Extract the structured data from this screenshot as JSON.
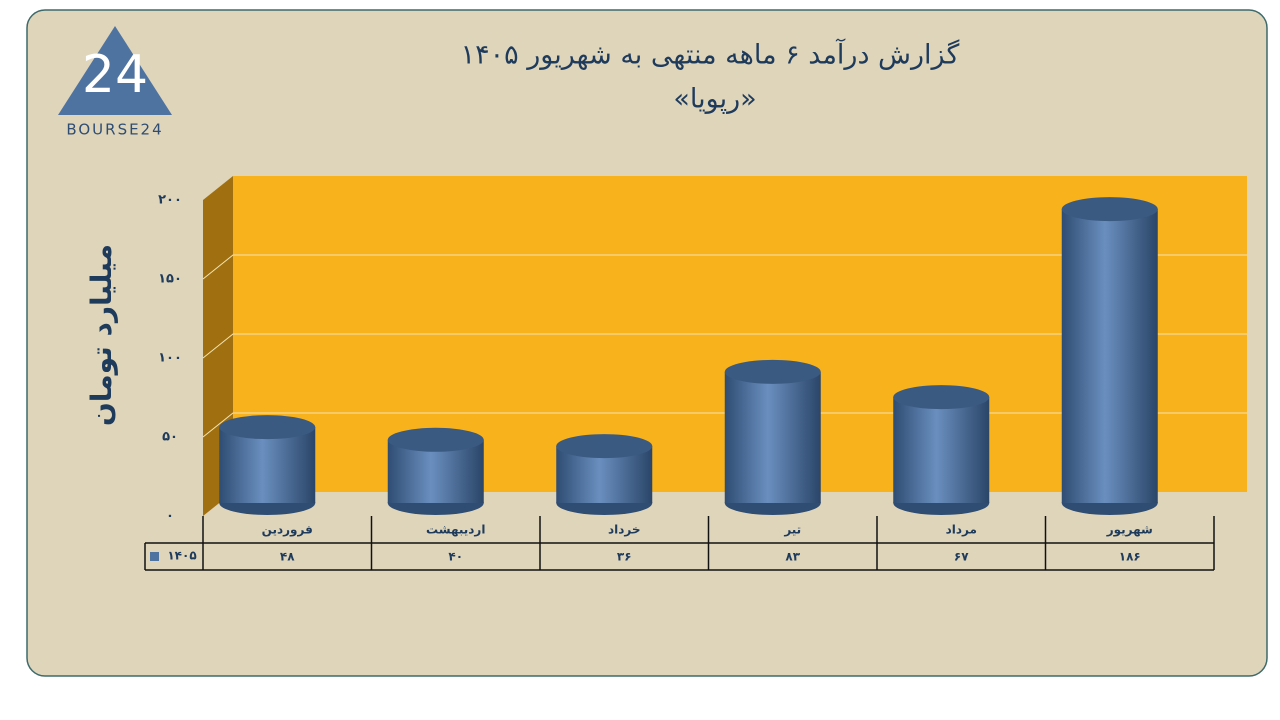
{
  "logo": {
    "mark": "24",
    "text": "BOURSE24"
  },
  "chart_data": {
    "type": "bar",
    "title": "گزارش درآمد ۶ ماهه منتهی به شهریور ۱۴۰۵",
    "subtitle": "«رپویا»",
    "y_label": "میلیارد تومان",
    "categories": [
      "فروردین",
      "اردیبهشت",
      "خرداد",
      "تیر",
      "مرداد",
      "شهریور"
    ],
    "series": [
      {
        "name": "۱۴۰۵",
        "color": "#4f73a0",
        "values": [
          48,
          40,
          36,
          83,
          67,
          186
        ],
        "value_labels": [
          "۴۸",
          "۴۰",
          "۳۶",
          "۸۳",
          "۶۷",
          "۱۸۶"
        ]
      }
    ],
    "ylim": [
      0,
      200
    ],
    "yticks": [
      {
        "value": 0,
        "label": "۰"
      },
      {
        "value": 50,
        "label": "۵۰"
      },
      {
        "value": 100,
        "label": "۱۰۰"
      },
      {
        "value": 150,
        "label": "۱۵۰"
      },
      {
        "value": 200,
        "label": "۲۰۰"
      }
    ],
    "grid": true
  }
}
